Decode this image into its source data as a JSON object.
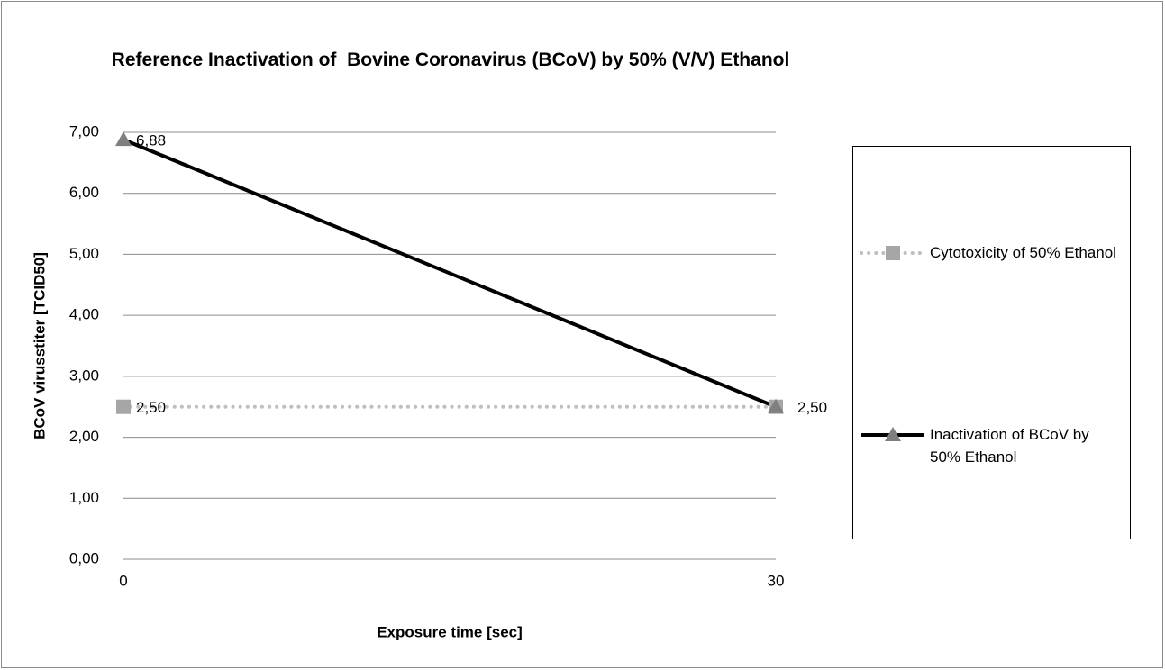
{
  "chart_data": {
    "type": "line",
    "title": "Reference Inactivation of  Bovine Coronavirus (BCoV) by 50% (V/V) Ethanol",
    "x_label": "Exposure time  [sec]",
    "y_label": "BCoV virusstiter [TCID50]",
    "x": [
      0,
      30
    ],
    "xlim": [
      0,
      30
    ],
    "xticks": [
      0,
      30
    ],
    "ylim": [
      0,
      7
    ],
    "yticks": [
      {
        "value": 0,
        "label": "0,00"
      },
      {
        "value": 1,
        "label": "1,00"
      },
      {
        "value": 2,
        "label": "2,00"
      },
      {
        "value": 3,
        "label": "3,00"
      },
      {
        "value": 4,
        "label": "4,00"
      },
      {
        "value": 5,
        "label": "5,00"
      },
      {
        "value": 6,
        "label": "6,00"
      },
      {
        "value": 7,
        "label": "7,00"
      }
    ],
    "grid": true,
    "legend": "right",
    "series": [
      {
        "name": "Cytotoxicity of 50% Ethanol",
        "color": "#bfbfbf",
        "marker_color": "#a6a6a6",
        "marker": "square",
        "dash": "dotted",
        "values": [
          2.5,
          2.5
        ],
        "value_labels": [
          "2,50",
          null
        ]
      },
      {
        "name": "Inactivation of BCoV by 50% Ethanol",
        "color": "#000000",
        "marker_color": "#7f7f7f",
        "marker": "triangle",
        "dash": "solid",
        "values": [
          6.88,
          2.5
        ],
        "value_labels": [
          "6,88",
          "2,50"
        ]
      }
    ]
  }
}
